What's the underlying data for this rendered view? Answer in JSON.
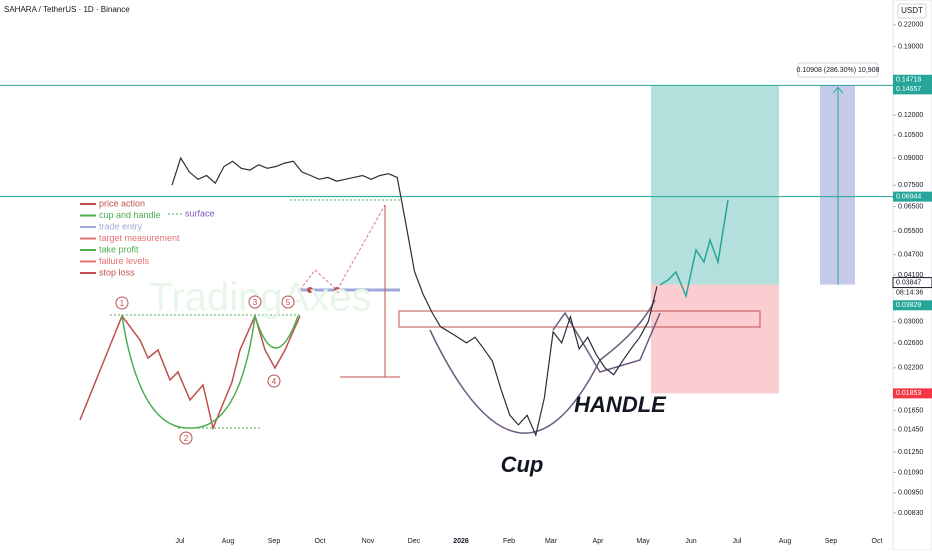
{
  "chart_data": {
    "type": "line",
    "title": "SAHARA / TetherUS · 1D · Binance",
    "currency": "USDT",
    "log_scale": true,
    "color": "#2a2e39",
    "ylim": [
      0.00716,
      0.26
    ],
    "yticks": [
      {
        "value": 0.22,
        "label": "0.22000"
      },
      {
        "value": 0.19,
        "label": "0.19000"
      },
      {
        "value": 0.12,
        "label": "0.12000"
      },
      {
        "value": 0.105,
        "label": "0.10500"
      },
      {
        "value": 0.09,
        "label": "0.09000"
      },
      {
        "value": 0.075,
        "label": "0.07500"
      },
      {
        "value": 0.065,
        "label": "0.06500"
      },
      {
        "value": 0.055,
        "label": "0.05500"
      },
      {
        "value": 0.047,
        "label": "0.04700"
      },
      {
        "value": 0.041,
        "label": "0.04100"
      },
      {
        "value": 0.03,
        "label": "0.03000"
      },
      {
        "value": 0.026,
        "label": "0.02600"
      },
      {
        "value": 0.022,
        "label": "0.02200"
      },
      {
        "value": 0.0165,
        "label": "0.01650"
      },
      {
        "value": 0.0145,
        "label": "0.01450"
      },
      {
        "value": 0.0125,
        "label": "0.01250"
      },
      {
        "value": 0.0109,
        "label": "0.01090"
      },
      {
        "value": 0.0095,
        "label": "0.00950"
      },
      {
        "value": 0.0083,
        "label": "0.00830"
      }
    ],
    "xtick_labels": [
      "Jul",
      "Aug",
      "Sep",
      "Oct",
      "Nov",
      "Dec",
      "2026",
      "Feb",
      "Mar",
      "Apr",
      "May",
      "Jun",
      "Jul",
      "Aug",
      "Sep",
      "Oct"
    ],
    "values": [
      0.075,
      0.09,
      0.082,
      0.078,
      0.08,
      0.076,
      0.085,
      0.088,
      0.084,
      0.083,
      0.086,
      0.084,
      0.085,
      0.087,
      0.088,
      0.082,
      0.08,
      0.078,
      0.079,
      0.077,
      0.078,
      0.079,
      0.08,
      0.078,
      0.08,
      0.081,
      0.079,
      0.058,
      0.042,
      0.036,
      0.032,
      0.029,
      0.028,
      0.027,
      0.026,
      0.027,
      0.025,
      0.023,
      0.019,
      0.016,
      0.015,
      0.016,
      0.014,
      0.018,
      0.028,
      0.026,
      0.031,
      0.025,
      0.027,
      0.024,
      0.022,
      0.021,
      0.023,
      0.025,
      0.027,
      0.03,
      0.038
    ],
    "price_labels": [
      {
        "value": 0.14718,
        "color": "#26a69a"
      },
      {
        "value": 0.14657,
        "color": "#26a69a"
      },
      {
        "value": 0.06944,
        "color": "#26a69a"
      },
      {
        "value": 0.03847,
        "color": "#ffffff"
      },
      {
        "value": 0.03829,
        "color": "#26a69a"
      },
      {
        "value": 0.01853,
        "color": "#f23645"
      }
    ],
    "countdown": "08:14:36",
    "measure_label": "0.10908 (286.30%) 10,908",
    "annotations": [
      "Cup",
      "HANDLE"
    ],
    "inset": {
      "legend": [
        "price action",
        "cup and handle",
        "trade entry",
        "target measurement",
        "take profit",
        "failure levels",
        "stop loss"
      ],
      "surface": "surface",
      "markers": [
        "1",
        "2",
        "3",
        "4",
        "5"
      ],
      "watermark": "TradingAxes"
    }
  }
}
